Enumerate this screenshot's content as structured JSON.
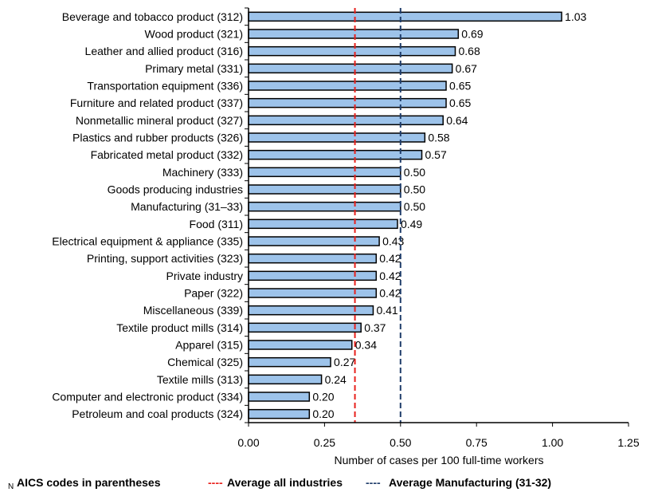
{
  "chart_data": {
    "type": "bar",
    "orientation": "horizontal",
    "categories": [
      "Beverage and tobacco product (312)",
      "Wood product (321)",
      "Leather and allied product (316)",
      "Primary metal (331)",
      "Transportation equipment (336)",
      "Furniture and related product (337)",
      "Nonmetallic mineral product (327)",
      "Plastics and rubber products (326)",
      "Fabricated metal product (332)",
      "Machinery (333)",
      "Goods producing industries",
      "Manufacturing (31–33)",
      "Food (311)",
      "Electrical equipment & appliance (335)",
      "Printing, support activities (323)",
      "Private industry",
      "Paper (322)",
      "Miscellaneous (339)",
      "Textile product mills (314)",
      "Apparel (315)",
      "Chemical (325)",
      "Textile mills (313)",
      "Computer and electronic product (334)",
      "Petroleum and coal products (324)"
    ],
    "values": [
      1.03,
      0.69,
      0.68,
      0.67,
      0.65,
      0.65,
      0.64,
      0.58,
      0.57,
      0.5,
      0.5,
      0.5,
      0.49,
      0.43,
      0.42,
      0.42,
      0.42,
      0.41,
      0.37,
      0.34,
      0.27,
      0.24,
      0.2,
      0.2
    ],
    "value_labels": [
      "1.03",
      "0.69",
      "0.68",
      "0.67",
      "0.65",
      "0.65",
      "0.64",
      "0.58",
      "0.57",
      "0.50",
      "0.50",
      "0.50",
      "0.49",
      "0.43",
      "0.42",
      "0.42",
      "0.42",
      "0.41",
      "0.37",
      "0.34",
      "0.27",
      "0.24",
      "0.20",
      "0.20"
    ],
    "xlabel": "Number of cases per 100 full-time workers",
    "xlim": [
      0,
      1.25
    ],
    "xticks": [
      "0.00",
      "0.25",
      "0.50",
      "0.75",
      "1.00",
      "1.25"
    ],
    "grid": false,
    "reference_lines": [
      {
        "name": "Average all industries",
        "value": 0.35,
        "color": "#e8201c",
        "style": "dashed"
      },
      {
        "name": "Average Manufacturing (31-32)",
        "value": 0.5,
        "color": "#1f3d6b",
        "style": "dashed"
      }
    ],
    "colors": {
      "bar_fill": "#9dc3ea",
      "bar_stroke": "#000000"
    }
  },
  "legend": {
    "note": "AICS codes in parentheses",
    "note_prefix": "N",
    "all_industries": "Average all industries",
    "manufacturing": "Average Manufacturing (31-32)",
    "dash_glyph": "----"
  }
}
